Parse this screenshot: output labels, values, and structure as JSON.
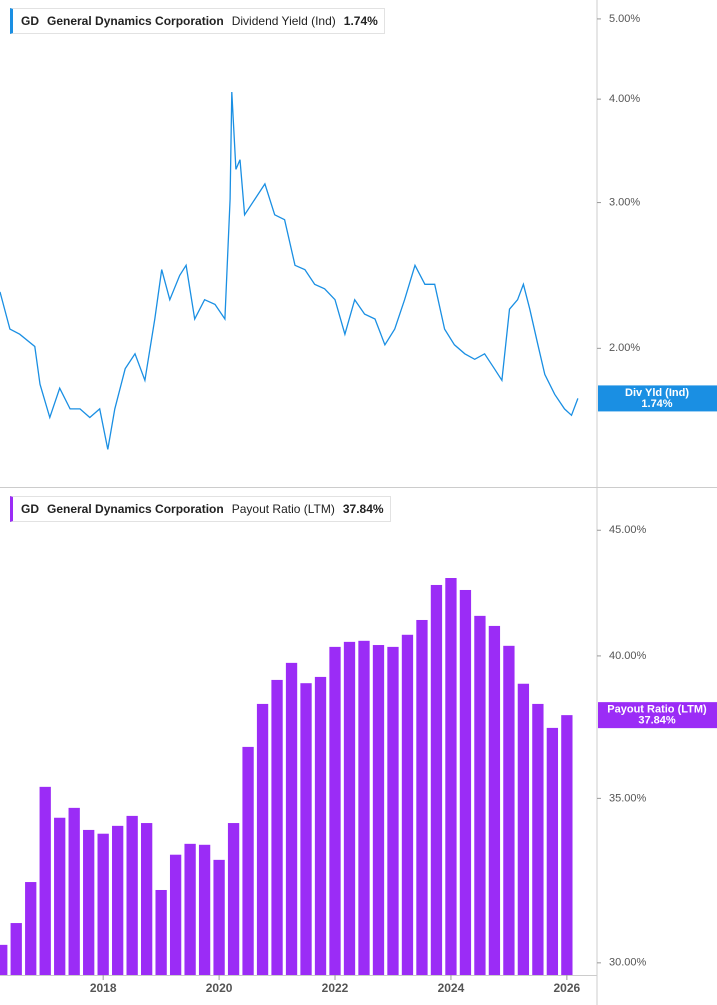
{
  "chart_data": [
    {
      "type": "line",
      "ticker": "GD",
      "company": "General Dynamics Corporation",
      "color": "#1a8fe3",
      "log_y": true,
      "current": {
        "value": 1.74,
        "label": "1.74%"
      },
      "series": [
        {
          "name": "Dividend Yield (Ind)",
          "badge_label": "Div Yld (Ind)",
          "color": "#1a8fe3",
          "values": [
            2.34,
            2.11,
            2.08,
            2.01,
            1.81,
            1.65,
            1.79,
            1.69,
            1.69,
            1.65,
            1.69,
            1.51,
            1.69,
            1.89,
            1.97,
            1.83,
            2.17,
            2.49,
            2.29,
            2.45,
            2.52,
            2.17,
            2.29,
            2.26,
            2.17,
            3.03,
            4.08,
            3.29,
            3.38,
            2.9,
            3.03,
            3.16,
            2.9,
            2.86,
            2.52,
            2.49,
            2.39,
            2.36,
            2.29,
            2.08,
            2.29,
            2.2,
            2.17,
            2.02,
            2.11,
            2.29,
            2.52,
            2.39,
            2.39,
            2.11,
            2.02,
            1.97,
            1.94,
            1.97,
            1.89,
            1.83,
            2.23,
            2.29,
            2.39,
            2.23,
            2.02,
            1.86,
            1.76,
            1.69,
            1.66,
            1.74
          ]
        }
      ],
      "x": [
        2016.22,
        2016.39,
        2016.56,
        2016.82,
        2016.91,
        2017.08,
        2017.25,
        2017.43,
        2017.6,
        2017.77,
        2017.94,
        2018.08,
        2018.2,
        2018.38,
        2018.55,
        2018.72,
        2018.89,
        2019.01,
        2019.15,
        2019.32,
        2019.43,
        2019.58,
        2019.75,
        2019.93,
        2020.1,
        2020.19,
        2020.22,
        2020.29,
        2020.36,
        2020.44,
        2020.62,
        2020.79,
        2020.96,
        2021.13,
        2021.31,
        2021.48,
        2021.65,
        2021.82,
        2022.0,
        2022.17,
        2022.34,
        2022.51,
        2022.69,
        2022.86,
        2023.03,
        2023.2,
        2023.38,
        2023.55,
        2023.72,
        2023.89,
        2024.06,
        2024.24,
        2024.41,
        2024.58,
        2024.75,
        2024.88,
        2025.01,
        2025.15,
        2025.25,
        2025.36,
        2025.5,
        2025.62,
        2025.79,
        2025.96,
        2026.08,
        2026.19
      ],
      "xlim": [
        2016.22,
        2026.52
      ],
      "ylim": [
        1.36,
        5.27
      ],
      "yticks": [
        {
          "value": 2,
          "label": "2.00%"
        },
        {
          "value": 3,
          "label": "3.00%"
        },
        {
          "value": 4,
          "label": "4.00%"
        },
        {
          "value": 5,
          "label": "5.00%"
        }
      ]
    },
    {
      "type": "bar",
      "ticker": "GD",
      "company": "General Dynamics Corporation",
      "color": "#9b2cf6",
      "log_y": true,
      "current": {
        "value": 37.84,
        "label": "37.84%"
      },
      "series": [
        {
          "name": "Payout Ratio (LTM)",
          "badge_label": "Payout Ratio (LTM)",
          "color": "#9b2cf6",
          "values": [
            30.51,
            31.14,
            32.36,
            35.38,
            34.37,
            34.69,
            33.98,
            33.86,
            34.11,
            34.43,
            34.2,
            32.12,
            33.2,
            33.54,
            33.51,
            33.04,
            34.2,
            36.73,
            38.24,
            39.11,
            39.74,
            38.99,
            39.22,
            40.34,
            40.53,
            40.57,
            40.41,
            40.34,
            40.8,
            41.37,
            42.75,
            43.03,
            42.55,
            41.53,
            41.14,
            40.38,
            38.97,
            38.24,
            37.39,
            37.84
          ]
        }
      ],
      "x": [
        2016.25,
        2016.5,
        2016.75,
        2017,
        2017.25,
        2017.5,
        2017.75,
        2018,
        2018.25,
        2018.5,
        2018.75,
        2019,
        2019.25,
        2019.5,
        2019.75,
        2020,
        2020.25,
        2020.5,
        2020.75,
        2021,
        2021.25,
        2021.5,
        2021.75,
        2022,
        2022.25,
        2022.5,
        2022.75,
        2023,
        2023.25,
        2023.5,
        2023.75,
        2024,
        2024.25,
        2024.5,
        2024.75,
        2025,
        2025.25,
        2025.5,
        2025.75,
        2026
      ],
      "xlim": [
        2016.22,
        2026.52
      ],
      "ylim": [
        29.66,
        46.73
      ],
      "xticks": [
        2018,
        2020,
        2022,
        2024,
        2026
      ],
      "yticks": [
        {
          "value": 30,
          "label": "30.00%"
        },
        {
          "value": 35,
          "label": "35.00%"
        },
        {
          "value": 40,
          "label": "40.00%"
        },
        {
          "value": 45,
          "label": "45.00%"
        }
      ]
    }
  ]
}
